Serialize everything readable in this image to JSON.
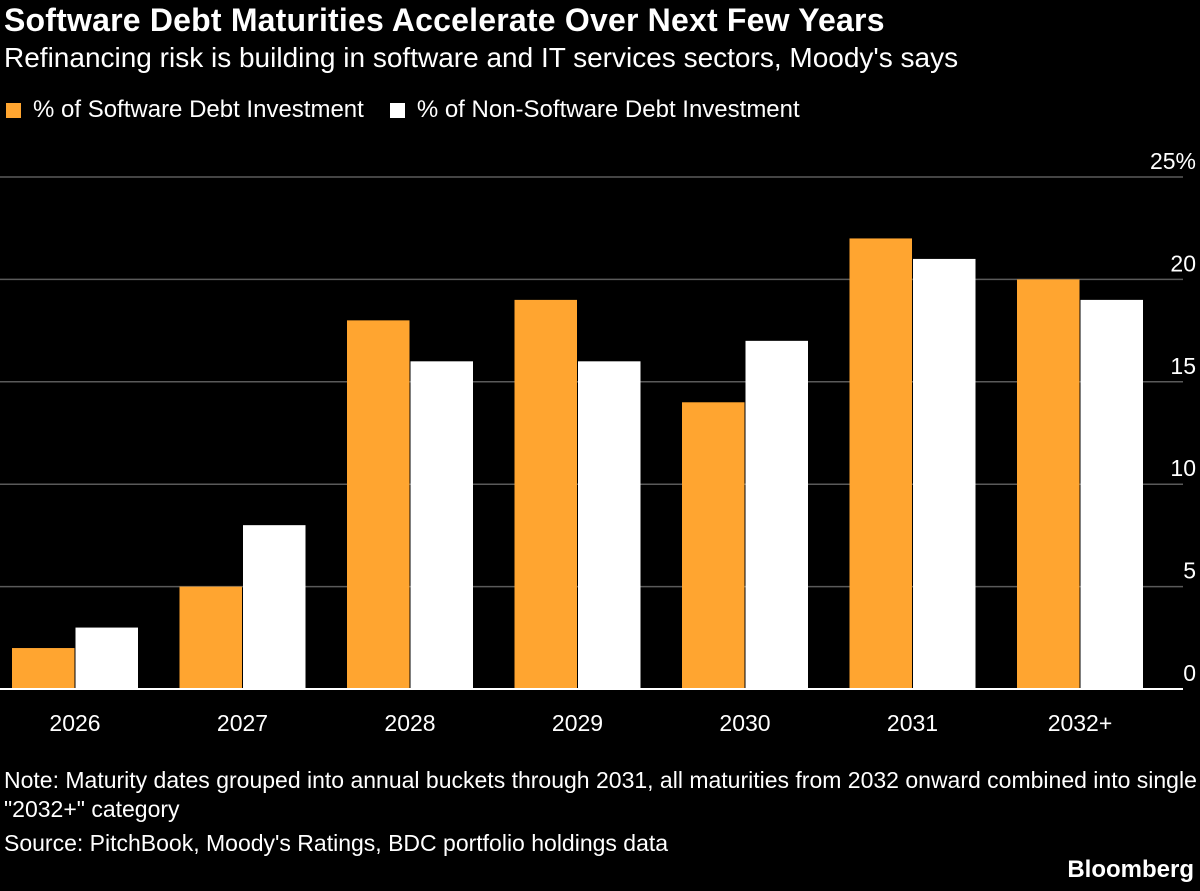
{
  "header": {
    "title": "Software Debt Maturities Accelerate Over Next Few Years",
    "subtitle": "Refinancing risk is building in software and IT services sectors, Moody's says"
  },
  "footer": {
    "note": "Note: Maturity dates grouped into annual buckets through 2031, all maturities from 2032 onward combined into single \"2032+\" category",
    "source": "Source: PitchBook, Moody's Ratings, BDC portfolio holdings data",
    "brand": "Bloomberg"
  },
  "colors": {
    "background": "#000000",
    "software": "#ffa530",
    "non_software": "#ffffff",
    "grid": "#5a5a5a",
    "text": "#ffffff"
  },
  "chart_data": {
    "type": "bar",
    "title": "Software Debt Maturities Accelerate Over Next Few Years",
    "subtitle": "Refinancing risk is building in software and IT services sectors, Moody's says",
    "xlabel": "",
    "ylabel": "",
    "categories": [
      "2026",
      "2027",
      "2028",
      "2029",
      "2030",
      "2031",
      "2032+"
    ],
    "series": [
      {
        "name": "% of Software Debt Investment",
        "color": "#ffa530",
        "values": [
          2,
          5,
          18,
          19,
          14,
          22,
          20
        ]
      },
      {
        "name": "% of Non-Software Debt Investment",
        "color": "#ffffff",
        "values": [
          3,
          8,
          16,
          16,
          17,
          21,
          19
        ]
      }
    ],
    "ylim": [
      0,
      25
    ],
    "yticks": [
      0,
      5,
      10,
      15,
      20,
      25
    ],
    "ytick_labels": [
      "0",
      "5",
      "10",
      "15",
      "20",
      "25%"
    ],
    "grid": true,
    "legend_position": "top-left"
  }
}
